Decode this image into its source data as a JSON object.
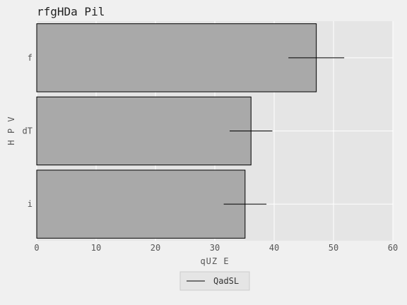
{
  "chart_data": {
    "type": "bar",
    "orientation": "horizontal",
    "title": "rfgHDa  Pil",
    "xlabel": "qUZ E",
    "ylabel": "H P V",
    "categories": [
      "i",
      "dT",
      "f"
    ],
    "series": [
      {
        "name": "QadSL",
        "values": [
          35.1,
          36.1,
          47.1
        ],
        "error": [
          3.6,
          3.6,
          4.7
        ]
      }
    ],
    "xlim": [
      0,
      60
    ],
    "xticks": [
      0,
      10,
      20,
      30,
      40,
      50,
      60
    ],
    "grid": true,
    "legend_position": "bottom-center",
    "colors": {
      "bar_fill": "#a9a9a9",
      "bar_edge": "#000000",
      "plot_background": "#e5e5e5",
      "figure_background": "#f0f0f0",
      "grid": "#ffffff"
    }
  }
}
